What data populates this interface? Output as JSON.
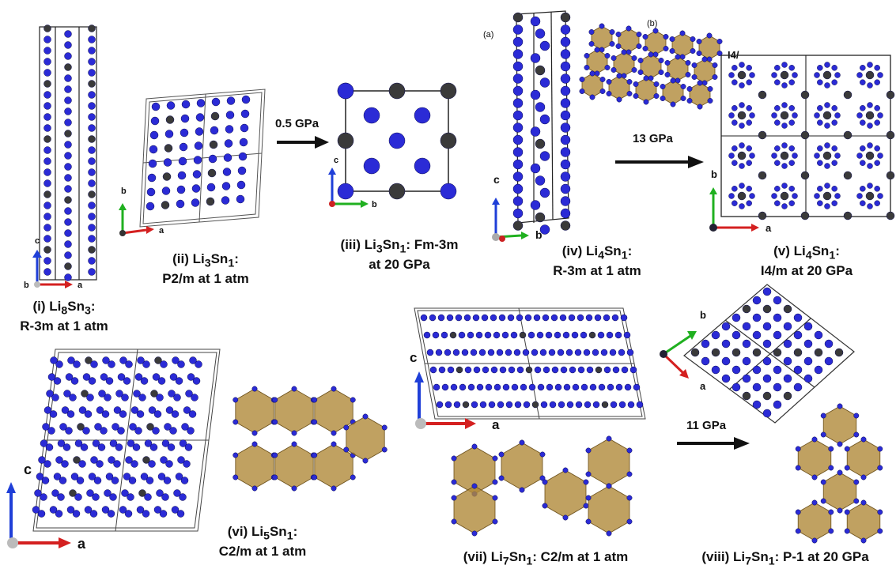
{
  "colors": {
    "li": "#2b2bd6",
    "sn": "#3a3a3a",
    "poly": "#b08a3a",
    "axis_a": "#d42020",
    "axis_b": "#20b020",
    "axis_c": "#1f3fd8"
  },
  "structures": [
    {
      "id": "i",
      "name_prefix": "(i) Li",
      "li": "8",
      "mid": "Sn",
      "sn": "3",
      "line1_suffix": ":",
      "line2": "R-3m at 1 atm"
    },
    {
      "id": "ii",
      "name_prefix": "(ii) Li",
      "li": "3",
      "mid": "Sn",
      "sn": "1",
      "line1_suffix": ":",
      "line2": "P2/m at 1 atm"
    },
    {
      "id": "iii",
      "name_prefix": "(iii) Li",
      "li": "3",
      "mid": "Sn",
      "sn": "1",
      "line1_suffix": ": Fm-3m",
      "line2": "at 20 GPa"
    },
    {
      "id": "iv",
      "name_prefix": "(iv) Li",
      "li": "4",
      "mid": "Sn",
      "sn": "1",
      "line1_suffix": ":",
      "line2": "R-3m at 1 atm"
    },
    {
      "id": "v",
      "name_prefix": "(v) Li",
      "li": "4",
      "mid": "Sn",
      "sn": "1",
      "line1_suffix": ":",
      "line2": "I4/m at 20 GPa"
    },
    {
      "id": "vi",
      "name_prefix": "(vi) Li",
      "li": "5",
      "mid": "Sn",
      "sn": "1",
      "line1_suffix": ":",
      "line2": "C2/m at 1 atm"
    },
    {
      "id": "vii",
      "name_prefix": "(vii) Li",
      "li": "7",
      "mid": "Sn",
      "sn": "1",
      "line1_suffix": ": C2/m at 1 atm",
      "line2": ""
    },
    {
      "id": "viii",
      "name_prefix": "(viii) Li",
      "li": "7",
      "mid": "Sn",
      "sn": "1",
      "line1_suffix": ": P-1 at 20 GPa",
      "line2": ""
    }
  ],
  "transitions": {
    "p1": "0.5 GPa",
    "p2": "13 GPa",
    "p3": "11 GPa"
  },
  "sublabels": {
    "a": "(a)",
    "b": "(b)",
    "i4": "I4/"
  },
  "axes": {
    "a": "a",
    "b": "b",
    "c": "c"
  }
}
